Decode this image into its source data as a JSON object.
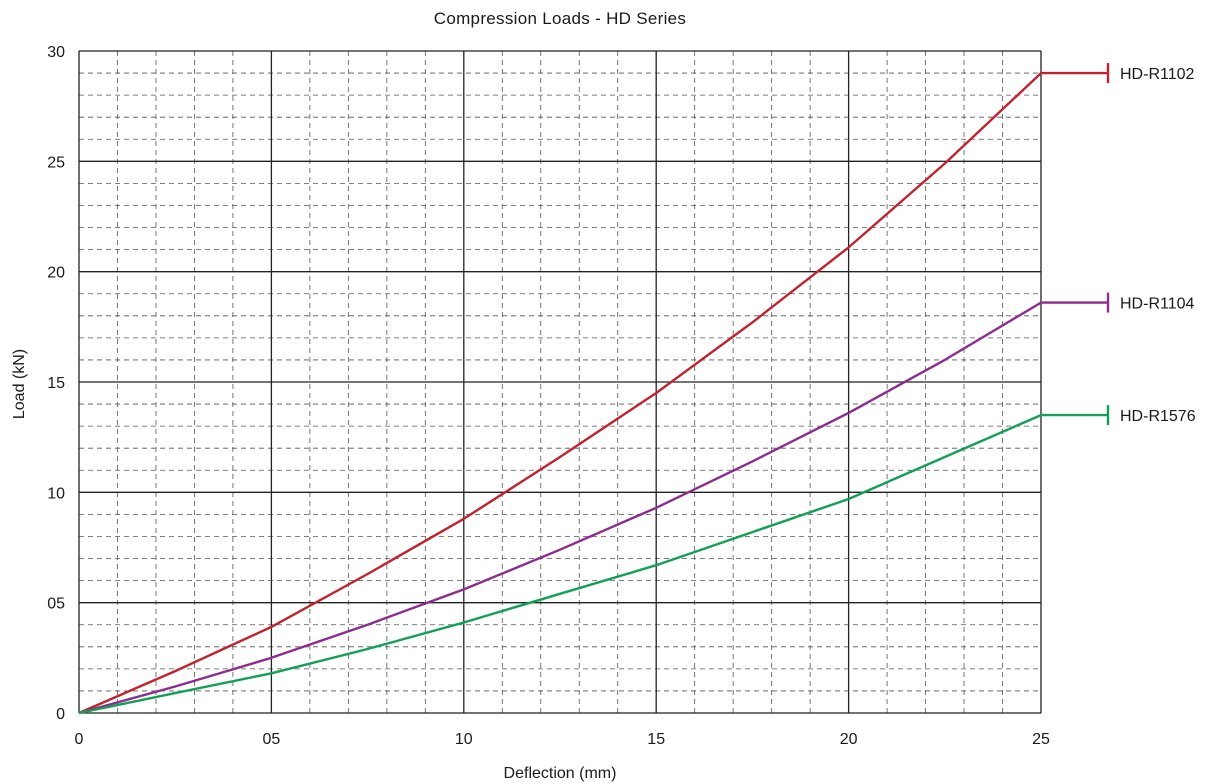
{
  "chart_data": {
    "type": "line",
    "title": "Compression Loads - HD Series",
    "xlabel": "Deflection (mm)",
    "ylabel": "Load (kN)",
    "xlim": [
      0,
      25
    ],
    "ylim": [
      0,
      30
    ],
    "x_ticks": [
      0,
      5,
      10,
      15,
      20,
      25
    ],
    "x_tick_labels": [
      "0",
      "05",
      "10",
      "15",
      "20",
      "25"
    ],
    "y_ticks": [
      0,
      5,
      10,
      15,
      20,
      25,
      30
    ],
    "y_tick_labels": [
      "0",
      "05",
      "10",
      "15",
      "20",
      "25",
      "30"
    ],
    "grid": "major solid, minor dashed",
    "legend_placement": "right end labels",
    "x": [
      0,
      2.5,
      5,
      7.5,
      10,
      12.5,
      15,
      17.5,
      20,
      22.5,
      25
    ],
    "series": [
      {
        "name": "HD-R1102",
        "color": "#c0232e",
        "values": [
          0,
          1.9,
          3.9,
          6.3,
          8.8,
          11.6,
          14.5,
          17.7,
          21.1,
          24.9,
          29.0
        ]
      },
      {
        "name": "HD-R1104",
        "color": "#8b2c8e",
        "values": [
          0,
          1.2,
          2.5,
          4.0,
          5.6,
          7.4,
          9.3,
          11.4,
          13.6,
          16.0,
          18.6
        ]
      },
      {
        "name": "HD-R1576",
        "color": "#11a054",
        "values": [
          0,
          0.9,
          1.8,
          2.9,
          4.1,
          5.4,
          6.7,
          8.2,
          9.7,
          11.6,
          13.5
        ]
      }
    ]
  }
}
